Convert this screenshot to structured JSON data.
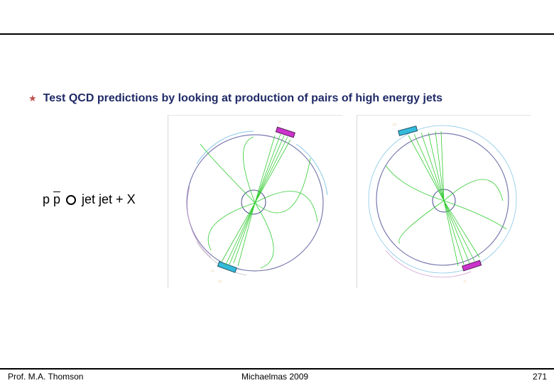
{
  "slide": {
    "bullet": {
      "icon": "star-bullet-icon",
      "text": "Test QCD predictions by looking at production of pairs of high energy jets"
    },
    "reaction": {
      "initial_p": "p",
      "initial_pbar": "p",
      "arrow_icon": "arrow-icon",
      "products": "jet jet + X"
    },
    "images": [
      {
        "name": "two-jet-event-display-left",
        "icon": "event-display-image"
      },
      {
        "name": "two-jet-event-display-right",
        "icon": "event-display-image"
      }
    ]
  },
  "footer": {
    "author": "Prof. M.A. Thomson",
    "term": "Michaelmas 2009",
    "page": "271"
  },
  "colors": {
    "bullet_text": "#1f2a66",
    "bullet_star": "#c0504d",
    "tracks": "#33cc33",
    "detector_ring": "#7a7ab0",
    "calorimeter_left": "#cc33cc",
    "calorimeter_right": "#33bbdd"
  }
}
